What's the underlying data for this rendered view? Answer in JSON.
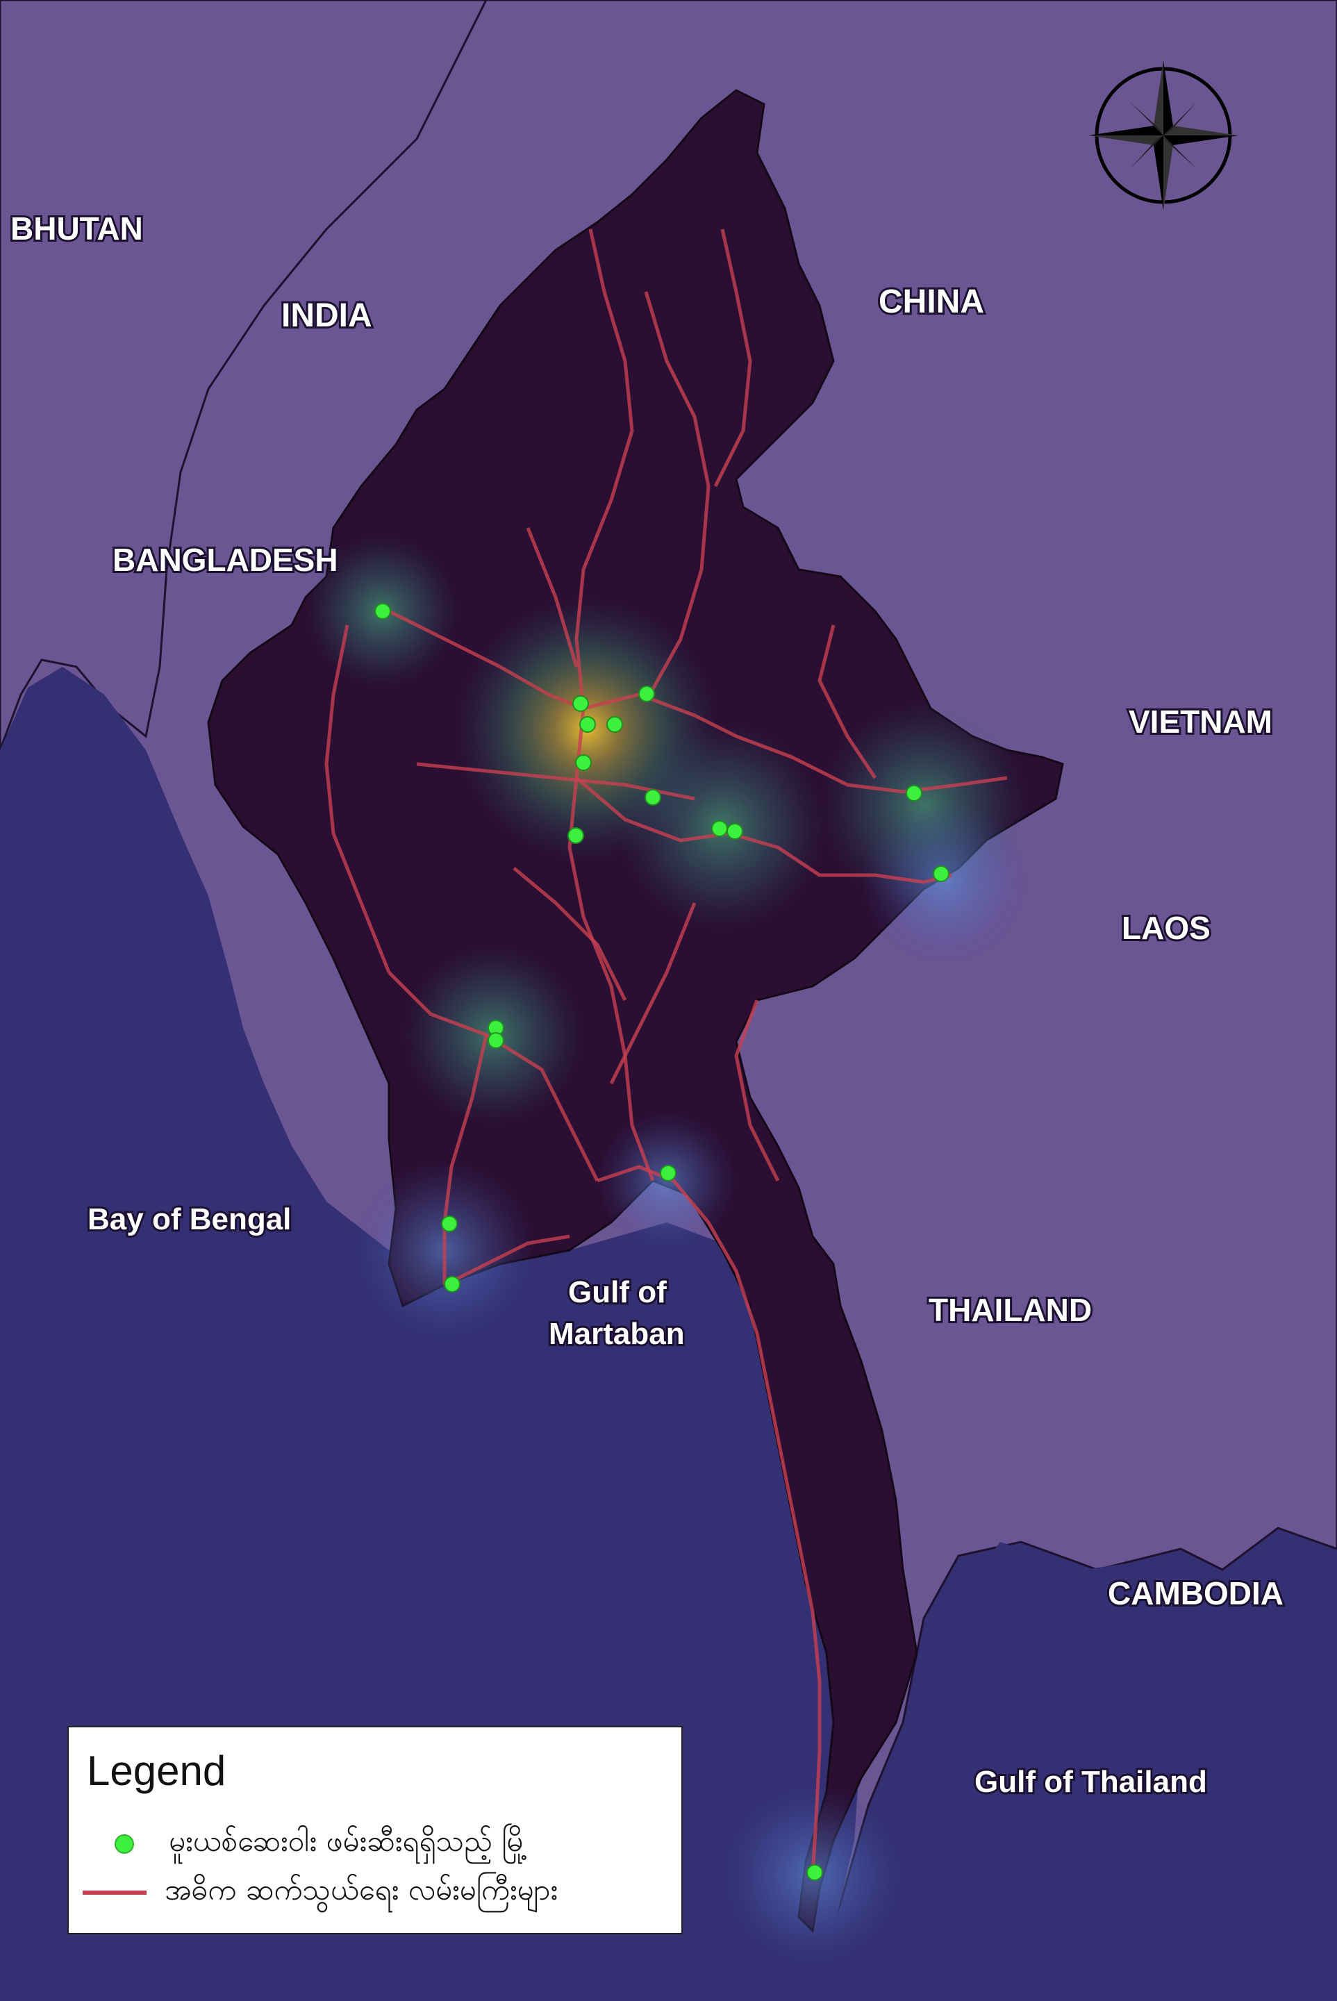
{
  "colors": {
    "sea": "#343073",
    "land_neighbor": "#6b5593",
    "land_myanmar": "#2a0f33",
    "roads": "#c84050",
    "cities": "#3ef03e"
  },
  "labels": {
    "bhutan": "BHUTAN",
    "india": "INDIA",
    "china": "CHINA",
    "bangladesh": "BANGLADESH",
    "vietnam": "VIETNAM",
    "laos": "LAOS",
    "thailand": "THAILAND",
    "cambodia": "CAMBODIA",
    "bay_of_bengal": "Bay of Bengal",
    "gulf_martaban_1": "Gulf of",
    "gulf_martaban_2": "Martaban",
    "gulf_of_thailand": "Gulf of Thailand"
  },
  "north_arrow": {
    "icon": "compass-rose-icon"
  },
  "legend": {
    "title": "Legend",
    "items": [
      {
        "symbol": "green-dot",
        "label": "မူးယစ်ဆေးဝါး ဖမ်းဆီးရရှိသည့် မြို့"
      },
      {
        "symbol": "red-line",
        "label": "အဓိက ဆက်သွယ်ရေး လမ်းမကြီးများ"
      }
    ]
  }
}
